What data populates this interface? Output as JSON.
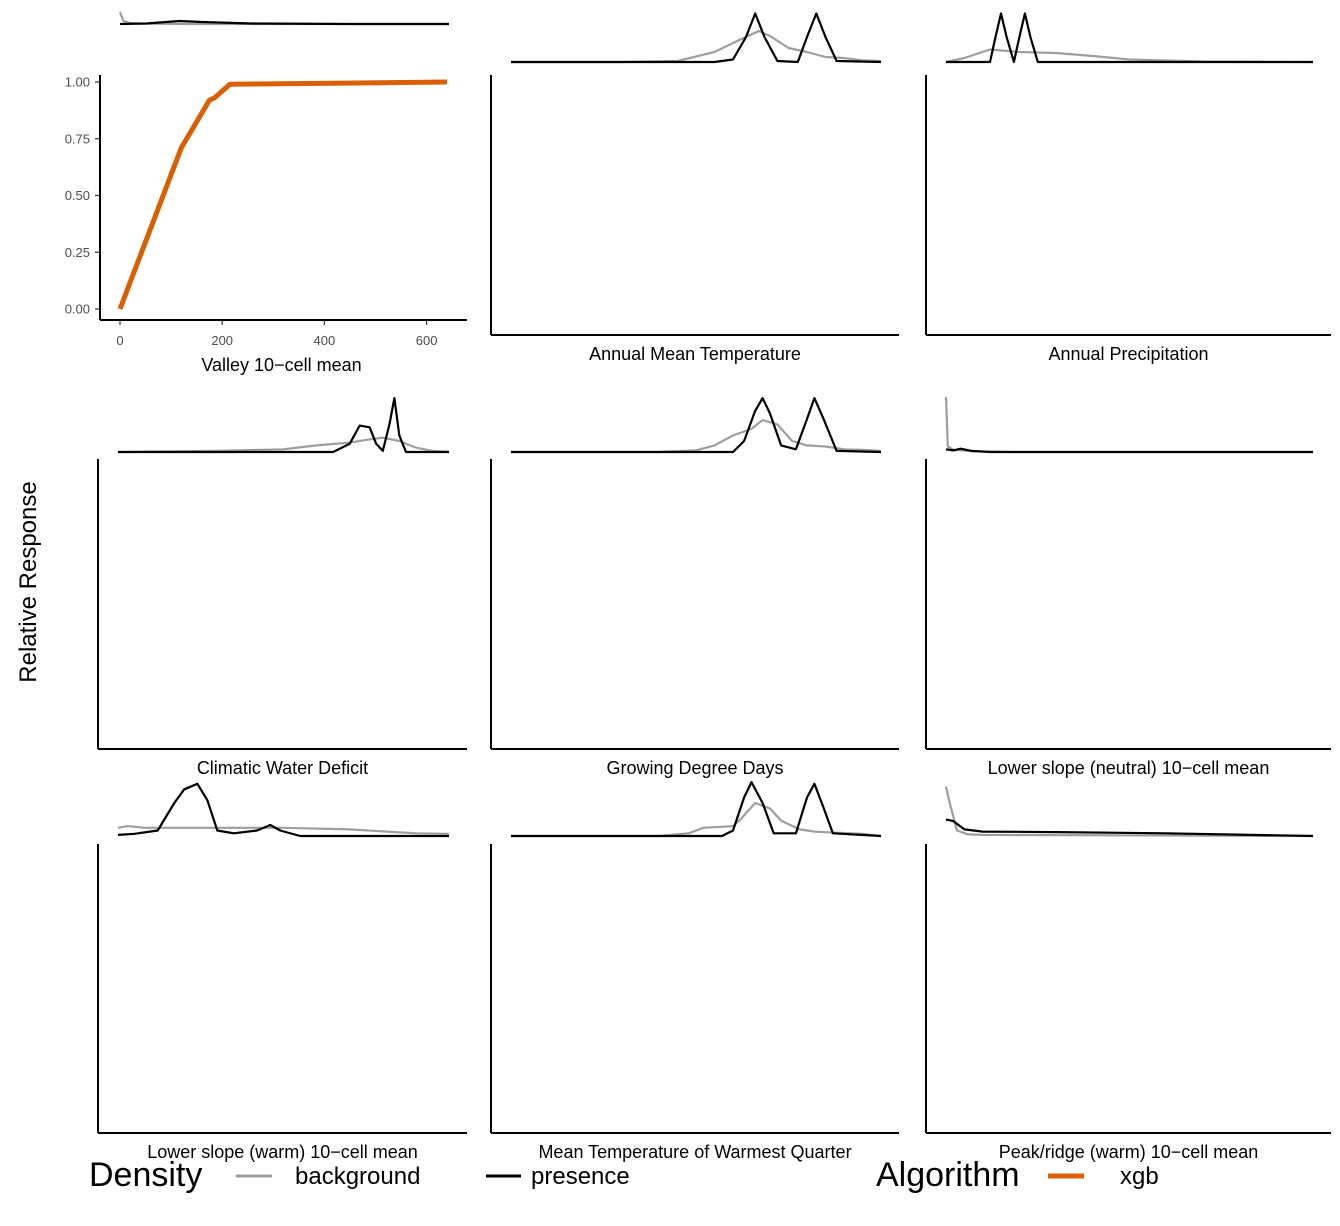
{
  "chart_data": {
    "type": "line",
    "ylabel": "Relative Response",
    "colors": {
      "background": "#9e9e9e",
      "presence": "#000000",
      "xgb": "#d95f02"
    },
    "legend": {
      "placement": "bottom",
      "density": {
        "title": "Density",
        "items": [
          "background",
          "presence"
        ]
      },
      "algorithm": {
        "title": "Algorithm",
        "items": [
          "xgb"
        ]
      }
    },
    "panels": [
      {
        "xlabel": "Valley 10−cell mean",
        "xlim": [
          -20,
          660
        ],
        "ylim": [
          -0.03,
          1.03
        ],
        "xticks": [
          "0",
          "200",
          "400",
          "600"
        ],
        "xtick_values": [
          0,
          200,
          400,
          600
        ],
        "yticks": [
          "0.00",
          "0.25",
          "0.50",
          "0.75",
          "1.00"
        ],
        "ytick_values": [
          0,
          0.25,
          0.5,
          0.75,
          1
        ],
        "series": [
          {
            "name": "xgb",
            "x": [
              0,
              120,
              175,
              185,
              215,
              640
            ],
            "y": [
              0.0,
              0.71,
              0.92,
              0.93,
              0.99,
              1.0
            ]
          }
        ],
        "density": {
          "background": [
            [
              0,
              1.0
            ],
            [
              0.01,
              0.82
            ],
            [
              0.03,
              0.78
            ],
            [
              0.06,
              0.77
            ],
            [
              0.2,
              0.76
            ],
            [
              0.5,
              0.76
            ],
            [
              0.8,
              0.76
            ],
            [
              1,
              0.76
            ]
          ],
          "presence": [
            [
              0,
              0.76
            ],
            [
              0.08,
              0.77
            ],
            [
              0.18,
              0.82
            ],
            [
              0.25,
              0.8
            ],
            [
              0.4,
              0.77
            ],
            [
              0.7,
              0.76
            ],
            [
              1,
              0.76
            ]
          ]
        }
      },
      {
        "xlabel": "Annual Mean Temperature",
        "density": {
          "background": [
            [
              0,
              0.0
            ],
            [
              0.3,
              0.0
            ],
            [
              0.45,
              0.02
            ],
            [
              0.55,
              0.2
            ],
            [
              0.62,
              0.45
            ],
            [
              0.67,
              0.62
            ],
            [
              0.7,
              0.52
            ],
            [
              0.75,
              0.28
            ],
            [
              0.8,
              0.2
            ],
            [
              0.85,
              0.1
            ],
            [
              0.9,
              0.08
            ],
            [
              0.95,
              0.03
            ],
            [
              1,
              0.02
            ]
          ],
          "presence": [
            [
              0,
              0.0
            ],
            [
              0.55,
              0.0
            ],
            [
              0.6,
              0.05
            ],
            [
              0.635,
              0.5
            ],
            [
              0.66,
              0.97
            ],
            [
              0.685,
              0.5
            ],
            [
              0.72,
              0.02
            ],
            [
              0.775,
              0.0
            ],
            [
              0.8,
              0.5
            ],
            [
              0.825,
              0.97
            ],
            [
              0.85,
              0.5
            ],
            [
              0.88,
              0.02
            ],
            [
              1,
              0.0
            ]
          ]
        }
      },
      {
        "xlabel": "Annual Precipitation",
        "density": {
          "background": [
            [
              0,
              0.0
            ],
            [
              0.05,
              0.08
            ],
            [
              0.12,
              0.25
            ],
            [
              0.2,
              0.2
            ],
            [
              0.3,
              0.18
            ],
            [
              0.4,
              0.12
            ],
            [
              0.5,
              0.05
            ],
            [
              0.7,
              0.01
            ],
            [
              1,
              0.0
            ]
          ],
          "presence": [
            [
              0,
              0.0
            ],
            [
              0.12,
              0.0
            ],
            [
              0.135,
              0.5
            ],
            [
              0.15,
              0.97
            ],
            [
              0.165,
              0.5
            ],
            [
              0.185,
              0.0
            ],
            [
              0.2,
              0.5
            ],
            [
              0.215,
              0.97
            ],
            [
              0.23,
              0.5
            ],
            [
              0.25,
              0.0
            ],
            [
              1,
              0.0
            ]
          ]
        }
      },
      {
        "xlabel": "Climatic Water Deficit",
        "density": {
          "background": [
            [
              0,
              0.0
            ],
            [
              0.3,
              0.02
            ],
            [
              0.5,
              0.05
            ],
            [
              0.6,
              0.12
            ],
            [
              0.7,
              0.17
            ],
            [
              0.75,
              0.22
            ],
            [
              0.8,
              0.26
            ],
            [
              0.85,
              0.2
            ],
            [
              0.9,
              0.08
            ],
            [
              0.95,
              0.02
            ],
            [
              1,
              0.0
            ]
          ],
          "presence": [
            [
              0,
              0.0
            ],
            [
              0.65,
              0.0
            ],
            [
              0.7,
              0.15
            ],
            [
              0.73,
              0.48
            ],
            [
              0.76,
              0.45
            ],
            [
              0.78,
              0.15
            ],
            [
              0.8,
              0.02
            ],
            [
              0.82,
              0.5
            ],
            [
              0.835,
              0.98
            ],
            [
              0.85,
              0.3
            ],
            [
              0.87,
              0.0
            ],
            [
              1,
              0.0
            ]
          ]
        }
      },
      {
        "xlabel": "Growing Degree Days",
        "density": {
          "background": [
            [
              0,
              0.0
            ],
            [
              0.4,
              0.0
            ],
            [
              0.5,
              0.03
            ],
            [
              0.55,
              0.12
            ],
            [
              0.6,
              0.3
            ],
            [
              0.65,
              0.42
            ],
            [
              0.68,
              0.58
            ],
            [
              0.72,
              0.5
            ],
            [
              0.76,
              0.2
            ],
            [
              0.8,
              0.12
            ],
            [
              0.85,
              0.1
            ],
            [
              0.9,
              0.05
            ],
            [
              0.95,
              0.04
            ],
            [
              1,
              0.02
            ]
          ],
          "presence": [
            [
              0,
              0.0
            ],
            [
              0.6,
              0.0
            ],
            [
              0.63,
              0.2
            ],
            [
              0.66,
              0.75
            ],
            [
              0.68,
              0.98
            ],
            [
              0.7,
              0.7
            ],
            [
              0.73,
              0.12
            ],
            [
              0.77,
              0.05
            ],
            [
              0.8,
              0.6
            ],
            [
              0.82,
              0.98
            ],
            [
              0.845,
              0.6
            ],
            [
              0.88,
              0.02
            ],
            [
              1,
              0.0
            ]
          ]
        }
      },
      {
        "xlabel": "Lower slope (neutral) 10−cell mean",
        "density": {
          "background": [
            [
              0,
              1.0
            ],
            [
              0.005,
              0.1
            ],
            [
              0.02,
              0.04
            ],
            [
              0.08,
              0.01
            ],
            [
              0.2,
              0.0
            ],
            [
              1,
              0.0
            ]
          ],
          "presence": [
            [
              0,
              0.05
            ],
            [
              0.02,
              0.03
            ],
            [
              0.04,
              0.06
            ],
            [
              0.07,
              0.02
            ],
            [
              0.12,
              0.0
            ],
            [
              1,
              0.0
            ]
          ]
        }
      },
      {
        "xlabel": "Lower slope (warm) 10−cell mean",
        "density": {
          "background": [
            [
              0,
              0.15
            ],
            [
              0.03,
              0.18
            ],
            [
              0.08,
              0.15
            ],
            [
              0.3,
              0.15
            ],
            [
              0.5,
              0.15
            ],
            [
              0.7,
              0.12
            ],
            [
              0.9,
              0.05
            ],
            [
              1,
              0.04
            ]
          ],
          "presence": [
            [
              0,
              0.02
            ],
            [
              0.05,
              0.04
            ],
            [
              0.12,
              0.1
            ],
            [
              0.17,
              0.6
            ],
            [
              0.2,
              0.85
            ],
            [
              0.24,
              0.95
            ],
            [
              0.27,
              0.65
            ],
            [
              0.3,
              0.1
            ],
            [
              0.35,
              0.05
            ],
            [
              0.42,
              0.1
            ],
            [
              0.46,
              0.2
            ],
            [
              0.49,
              0.1
            ],
            [
              0.55,
              0.0
            ],
            [
              1,
              0.0
            ]
          ]
        }
      },
      {
        "xlabel": "Mean Temperature of Warmest Quarter",
        "density": {
          "background": [
            [
              0,
              0.0
            ],
            [
              0.4,
              0.0
            ],
            [
              0.48,
              0.05
            ],
            [
              0.52,
              0.15
            ],
            [
              0.6,
              0.18
            ],
            [
              0.62,
              0.3
            ],
            [
              0.66,
              0.6
            ],
            [
              0.7,
              0.5
            ],
            [
              0.73,
              0.28
            ],
            [
              0.78,
              0.12
            ],
            [
              0.82,
              0.08
            ],
            [
              0.88,
              0.06
            ],
            [
              0.95,
              0.04
            ],
            [
              1,
              0.0
            ]
          ],
          "presence": [
            [
              0,
              0.0
            ],
            [
              0.57,
              0.0
            ],
            [
              0.6,
              0.1
            ],
            [
              0.63,
              0.7
            ],
            [
              0.65,
              0.98
            ],
            [
              0.68,
              0.6
            ],
            [
              0.71,
              0.05
            ],
            [
              0.77,
              0.05
            ],
            [
              0.8,
              0.7
            ],
            [
              0.82,
              0.95
            ],
            [
              0.84,
              0.6
            ],
            [
              0.87,
              0.05
            ],
            [
              1,
              0.0
            ]
          ]
        }
      },
      {
        "xlabel": "Peak/ridge (warm) 10−cell mean",
        "density": {
          "background": [
            [
              0,
              0.9
            ],
            [
              0.01,
              0.6
            ],
            [
              0.03,
              0.1
            ],
            [
              0.06,
              0.03
            ],
            [
              0.1,
              0.02
            ],
            [
              1,
              0.0
            ]
          ],
          "presence": [
            [
              0,
              0.3
            ],
            [
              0.02,
              0.27
            ],
            [
              0.05,
              0.12
            ],
            [
              0.1,
              0.08
            ],
            [
              0.3,
              0.07
            ],
            [
              0.6,
              0.05
            ],
            [
              1,
              0.0
            ]
          ]
        }
      }
    ]
  }
}
